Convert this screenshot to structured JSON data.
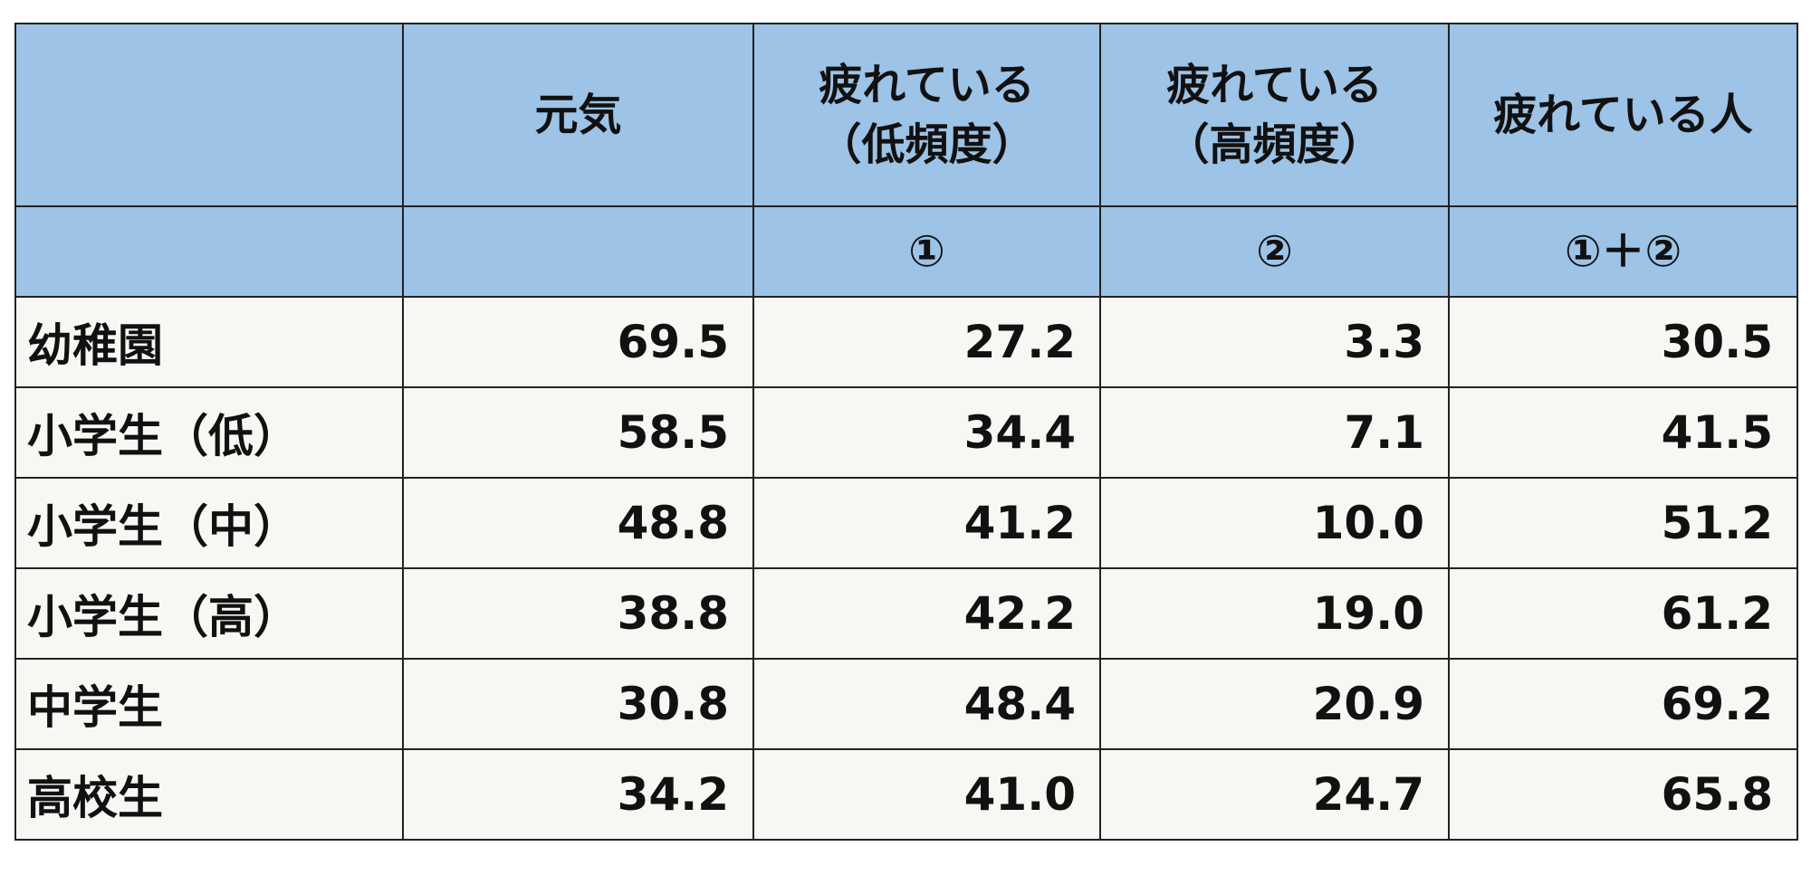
{
  "table": {
    "header": [
      {
        "lines": [
          "元気"
        ]
      },
      {
        "lines": [
          "疲れている",
          "（低頻度）"
        ],
        "sub": "①"
      },
      {
        "lines": [
          "疲れている",
          "（高頻度）"
        ],
        "sub": "②"
      },
      {
        "lines": [
          "疲れている人"
        ],
        "sub": "①＋②"
      }
    ],
    "rows": [
      {
        "label": "幼稚園",
        "values": [
          "69.5",
          "27.2",
          "3.3",
          "30.5"
        ]
      },
      {
        "label": "小学生（低）",
        "values": [
          "58.5",
          "34.4",
          "7.1",
          "41.5"
        ]
      },
      {
        "label": "小学生（中）",
        "values": [
          "48.8",
          "41.2",
          "10.0",
          "51.2"
        ]
      },
      {
        "label": "小学生（高）",
        "values": [
          "38.8",
          "42.2",
          "19.0",
          "61.2"
        ]
      },
      {
        "label": "中学生",
        "values": [
          "30.8",
          "48.4",
          "20.9",
          "69.2"
        ]
      },
      {
        "label": "高校生",
        "values": [
          "34.2",
          "41.0",
          "24.7",
          "65.8"
        ]
      }
    ]
  }
}
